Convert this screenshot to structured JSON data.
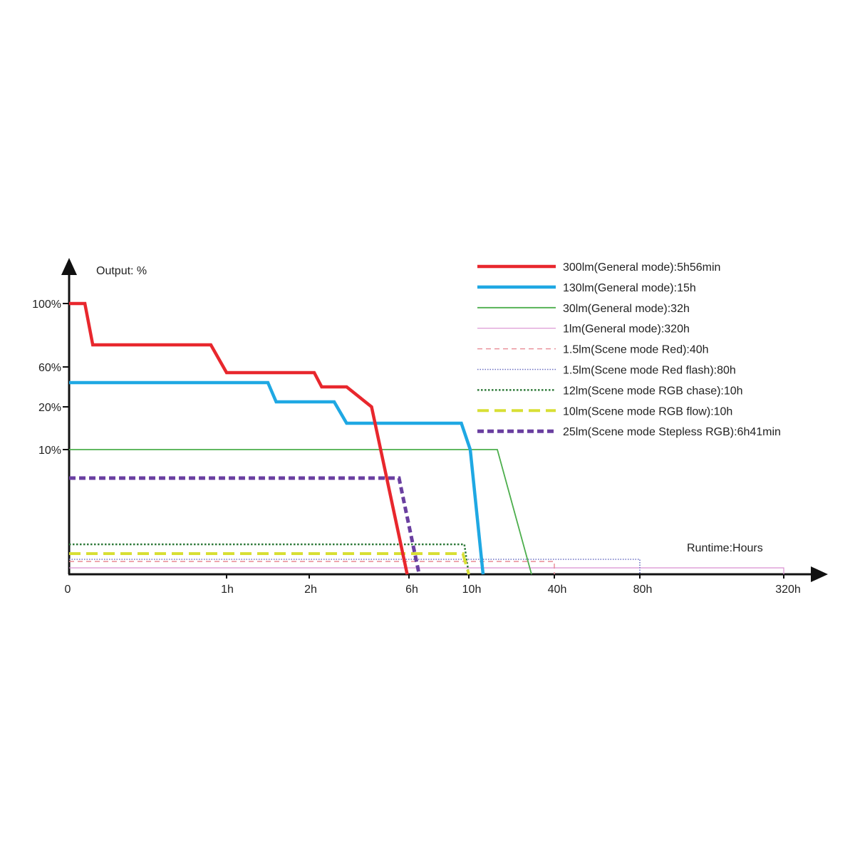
{
  "chart_data": {
    "type": "line",
    "ylabel": "Output: %",
    "xlabel": "Runtime:Hours",
    "x_ticks": [
      "0",
      "1h",
      "2h",
      "6h",
      "10h",
      "40h",
      "80h",
      "320h"
    ],
    "y_ticks": [
      "100%",
      "60%",
      "20%",
      "10%"
    ],
    "x_scale": "nonlinear",
    "y_scale": "nonlinear",
    "grid": false,
    "legend_position": "top-right",
    "series": [
      {
        "name": "300lm(General mode):5h56min",
        "color": "#e8272d",
        "style": "solid-thick",
        "points": [
          [
            0,
            100
          ],
          [
            0.1,
            100
          ],
          [
            0.15,
            80
          ],
          [
            0.9,
            80
          ],
          [
            1,
            62
          ],
          [
            2.2,
            62
          ],
          [
            2.5,
            55
          ],
          [
            3.5,
            55
          ],
          [
            4.5,
            20
          ],
          [
            5.93,
            0
          ]
        ]
      },
      {
        "name": "130lm(General mode):15h",
        "color": "#1fa8e3",
        "style": "solid-thick",
        "points": [
          [
            0,
            50
          ],
          [
            1.5,
            50
          ],
          [
            1.6,
            30
          ],
          [
            3.0,
            30
          ],
          [
            3.5,
            15
          ],
          [
            9.5,
            15
          ],
          [
            10.5,
            10
          ],
          [
            15,
            0
          ]
        ]
      },
      {
        "name": "30lm(General mode):32h",
        "color": "#4cae4c",
        "style": "solid-thin",
        "points": [
          [
            0,
            10
          ],
          [
            20,
            10
          ],
          [
            32,
            0
          ]
        ]
      },
      {
        "name": "1lm(General mode):320h",
        "color": "#d98fd0",
        "style": "solid-hair",
        "points": [
          [
            0,
            0.6
          ],
          [
            320,
            0.6
          ],
          [
            320,
            0
          ]
        ]
      },
      {
        "name": "1.5lm(Scene mode Red):40h",
        "color": "#e88a94",
        "style": "dashed-thin",
        "points": [
          [
            0,
            1
          ],
          [
            40,
            1
          ],
          [
            40,
            0
          ]
        ]
      },
      {
        "name": "1.5lm(Scene mode Red flash):80h",
        "color": "#6a6fc2",
        "style": "dotted-thin",
        "points": [
          [
            0,
            1.3
          ],
          [
            80,
            1.3
          ],
          [
            80,
            0
          ]
        ]
      },
      {
        "name": "12lm(Scene mode RGB chase):10h",
        "color": "#2f7a3a",
        "style": "dotted",
        "points": [
          [
            0,
            3
          ],
          [
            9.7,
            3
          ],
          [
            10,
            0
          ]
        ]
      },
      {
        "name": "10lm(Scene mode RGB flow):10h",
        "color": "#d8df35",
        "style": "dashed-thick",
        "points": [
          [
            0,
            2
          ],
          [
            9.6,
            2
          ],
          [
            10,
            0
          ]
        ]
      },
      {
        "name": "25lm(Scene mode Stepless RGB):6h41min",
        "color": "#6a3fa0",
        "style": "dashed-heavy",
        "points": [
          [
            0,
            5
          ],
          [
            5.6,
            5
          ],
          [
            6.68,
            0
          ]
        ]
      }
    ]
  }
}
